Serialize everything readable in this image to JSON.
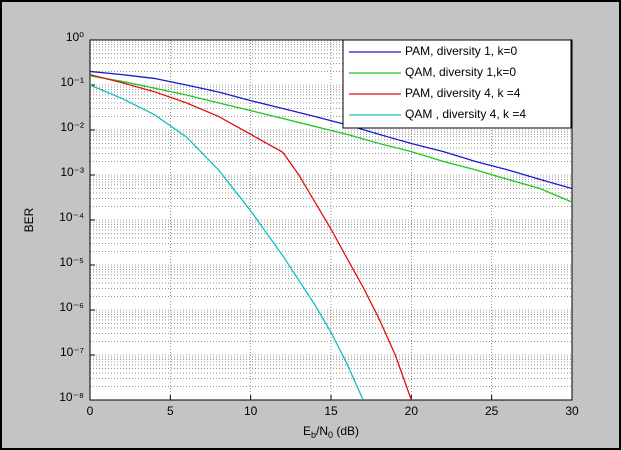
{
  "chart_data": {
    "type": "line",
    "log_y": true,
    "grid": true,
    "minor_grid": true,
    "legend": "northeast",
    "ylabel": "BER",
    "xlabel_parts": [
      "E",
      "b",
      "/N",
      "0",
      " (dB)"
    ],
    "xlim": [
      0,
      30
    ],
    "xticks": [
      0,
      5,
      10,
      15,
      20,
      25,
      30
    ],
    "ylim": [
      1e-08,
      1
    ],
    "yticks": [
      {
        "value": 1e-08,
        "label": "10⁻⁸"
      },
      {
        "value": 1e-07,
        "label": "10⁻⁷"
      },
      {
        "value": 1e-06,
        "label": "10⁻⁶"
      },
      {
        "value": 1e-05,
        "label": "10⁻⁵"
      },
      {
        "value": 0.0001,
        "label": "10⁻⁴"
      },
      {
        "value": 0.001,
        "label": "10⁻³"
      },
      {
        "value": 0.01,
        "label": "10⁻²"
      },
      {
        "value": 0.1,
        "label": "10⁻¹"
      },
      {
        "value": 1,
        "label": "10⁰"
      }
    ],
    "series": [
      {
        "name": "PAM, diversity 1, k=0",
        "color": "#1a1acc",
        "x": [
          0,
          2,
          4,
          6,
          8,
          10,
          12,
          14,
          16,
          18,
          20,
          22,
          24,
          26,
          28,
          30
        ],
        "values": [
          0.2,
          0.17,
          0.14,
          0.1,
          0.07,
          0.045,
          0.03,
          0.02,
          0.013,
          0.008,
          0.005,
          0.0033,
          0.002,
          0.0013,
          0.0008,
          0.0005
        ]
      },
      {
        "name": "QAM, diversity 1,k=0",
        "color": "#1ec81e",
        "x": [
          0,
          2,
          4,
          6,
          8,
          10,
          12,
          14,
          16,
          18,
          20,
          22,
          24,
          26,
          28,
          30
        ],
        "values": [
          0.16,
          0.12,
          0.085,
          0.06,
          0.04,
          0.027,
          0.018,
          0.012,
          0.008,
          0.005,
          0.0033,
          0.002,
          0.0013,
          0.0008,
          0.0005,
          0.00025
        ]
      },
      {
        "name": "PAM, diversity 4, k =4",
        "color": "#e01010",
        "x": [
          0,
          2,
          4,
          6,
          8,
          10,
          12,
          13,
          14,
          15,
          16,
          17,
          18,
          19,
          20
        ],
        "values": [
          0.17,
          0.112,
          0.071,
          0.04,
          0.02,
          0.008,
          0.0032,
          0.001,
          0.00025,
          6.3e-05,
          1.4e-05,
          3.2e-06,
          6.3e-07,
          1e-07,
          1e-08
        ]
      },
      {
        "name": "QAM , diversity 4, k =4",
        "color": "#10c0c0",
        "x": [
          0,
          2,
          4,
          6,
          8,
          10,
          12,
          14,
          15,
          16,
          17
        ],
        "values": [
          0.1,
          0.05,
          0.022,
          0.007,
          0.0013,
          0.00016,
          1.6e-05,
          1.3e-06,
          3.2e-07,
          6.3e-08,
          1e-08
        ]
      }
    ]
  }
}
